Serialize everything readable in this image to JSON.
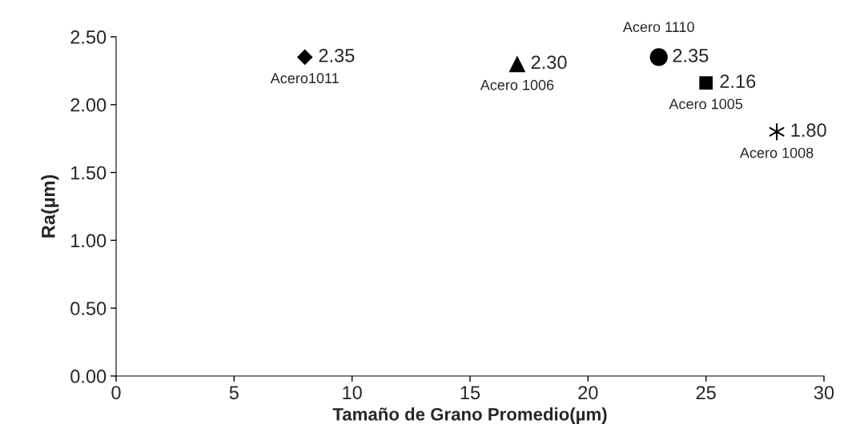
{
  "chart_data": {
    "type": "scatter",
    "xlabel": "Tamaño de Grano Promedio(µm)",
    "ylabel": "Ra(µm)",
    "series": [
      {
        "name": "Acero1011",
        "color": "#000000",
        "marker": "diamond",
        "x": [
          8
        ],
        "values": [
          2.35
        ],
        "value_labels": [
          "2.35"
        ]
      },
      {
        "name": "Acero 1006",
        "color": "#000000",
        "marker": "triangle",
        "x": [
          17
        ],
        "values": [
          2.3
        ],
        "value_labels": [
          "2.30"
        ]
      },
      {
        "name": "Acero 1110",
        "color": "#000000",
        "marker": "circle",
        "x": [
          23
        ],
        "values": [
          2.35
        ],
        "value_labels": [
          "2.35"
        ]
      },
      {
        "name": "Acero 1005",
        "color": "#000000",
        "marker": "square",
        "x": [
          25
        ],
        "values": [
          2.16
        ],
        "value_labels": [
          "2.16"
        ]
      },
      {
        "name": "Acero 1008",
        "color": "#000000",
        "marker": "cross",
        "x": [
          28
        ],
        "values": [
          1.8
        ],
        "value_labels": [
          "1.80"
        ]
      }
    ],
    "xlim": [
      0,
      30
    ],
    "xticks": [
      0,
      5,
      10,
      15,
      20,
      25,
      30
    ],
    "ylim": [
      0,
      2.5
    ],
    "yticks": [
      {
        "value": 0,
        "label": "0.00"
      },
      {
        "value": 0.5,
        "label": "0.50"
      },
      {
        "value": 1,
        "label": "1.00"
      },
      {
        "value": 1.5,
        "label": "1.50"
      },
      {
        "value": 2,
        "label": "2.00"
      },
      {
        "value": 2.5,
        "label": "2.50"
      }
    ],
    "grid": false,
    "legend": false
  }
}
